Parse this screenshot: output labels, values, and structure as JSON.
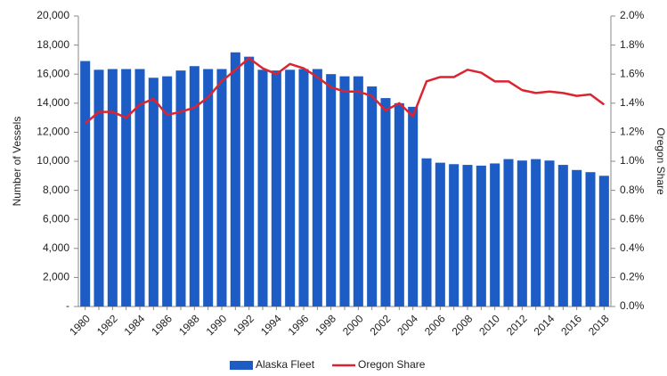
{
  "chart_data": {
    "type": "bar_line",
    "ylabel": "Number of Vessels",
    "y2label": "Oregon Share",
    "categories": [
      "1980",
      null,
      "1982",
      null,
      "1984",
      null,
      "1986",
      null,
      "1988",
      null,
      "1990",
      null,
      "1992",
      null,
      "1994",
      null,
      "1996",
      null,
      "1998",
      null,
      "2000",
      null,
      "2002",
      null,
      "2004",
      null,
      "2006",
      null,
      "2008",
      null,
      "2010",
      null,
      "2012",
      null,
      "2014",
      null,
      "2016",
      null,
      "2018"
    ],
    "series": [
      {
        "name": "Alaska Fleet",
        "color": "#1c5cc4",
        "type": "bar",
        "values": [
          16900,
          16300,
          16350,
          16350,
          16350,
          15750,
          15850,
          16250,
          16550,
          16350,
          16350,
          17500,
          17200,
          16300,
          16250,
          16300,
          16350,
          16350,
          16000,
          15850,
          15850,
          15150,
          14350,
          14000,
          13750,
          10200,
          9900,
          9800,
          9750,
          9700,
          9850,
          10150,
          10050,
          10150,
          10050,
          9750,
          9400,
          9250,
          9000
        ]
      },
      {
        "name": "Oregon Share",
        "color": "#dc2430",
        "type": "line",
        "axis": "y2",
        "values": [
          1.26,
          1.34,
          1.34,
          1.3,
          1.39,
          1.43,
          1.32,
          1.34,
          1.37,
          1.44,
          1.55,
          1.63,
          1.71,
          1.64,
          1.6,
          1.67,
          1.64,
          1.58,
          1.51,
          1.48,
          1.48,
          1.45,
          1.35,
          1.4,
          1.31,
          1.55,
          1.58,
          1.58,
          1.63,
          1.61,
          1.55,
          1.55,
          1.49,
          1.47,
          1.48,
          1.47,
          1.45,
          1.46,
          1.39
        ]
      }
    ],
    "ylim": [
      0,
      20000
    ],
    "yticks": [
      {
        "value": 0,
        "label": "-"
      },
      {
        "value": 2000,
        "label": "2,000"
      },
      {
        "value": 4000,
        "label": "4,000"
      },
      {
        "value": 6000,
        "label": "6,000"
      },
      {
        "value": 8000,
        "label": "8,000"
      },
      {
        "value": 10000,
        "label": "10,000"
      },
      {
        "value": 12000,
        "label": "12,000"
      },
      {
        "value": 14000,
        "label": "14,000"
      },
      {
        "value": 16000,
        "label": "16,000"
      },
      {
        "value": 18000,
        "label": "18,000"
      },
      {
        "value": 20000,
        "label": "20,000"
      }
    ],
    "y2lim": [
      0,
      2.0
    ],
    "y2ticks": [
      {
        "value": 0,
        "label": "0.0%"
      },
      {
        "value": 0.2,
        "label": "0.2%"
      },
      {
        "value": 0.4,
        "label": "0.4%"
      },
      {
        "value": 0.6,
        "label": "0.6%"
      },
      {
        "value": 0.8,
        "label": "0.8%"
      },
      {
        "value": 1.0,
        "label": "1.0%"
      },
      {
        "value": 1.2,
        "label": "1.2%"
      },
      {
        "value": 1.4,
        "label": "1.4%"
      },
      {
        "value": 1.6,
        "label": "1.6%"
      },
      {
        "value": 1.8,
        "label": "1.8%"
      },
      {
        "value": 2.0,
        "label": "2.0%"
      }
    ],
    "legend": "bottom"
  }
}
